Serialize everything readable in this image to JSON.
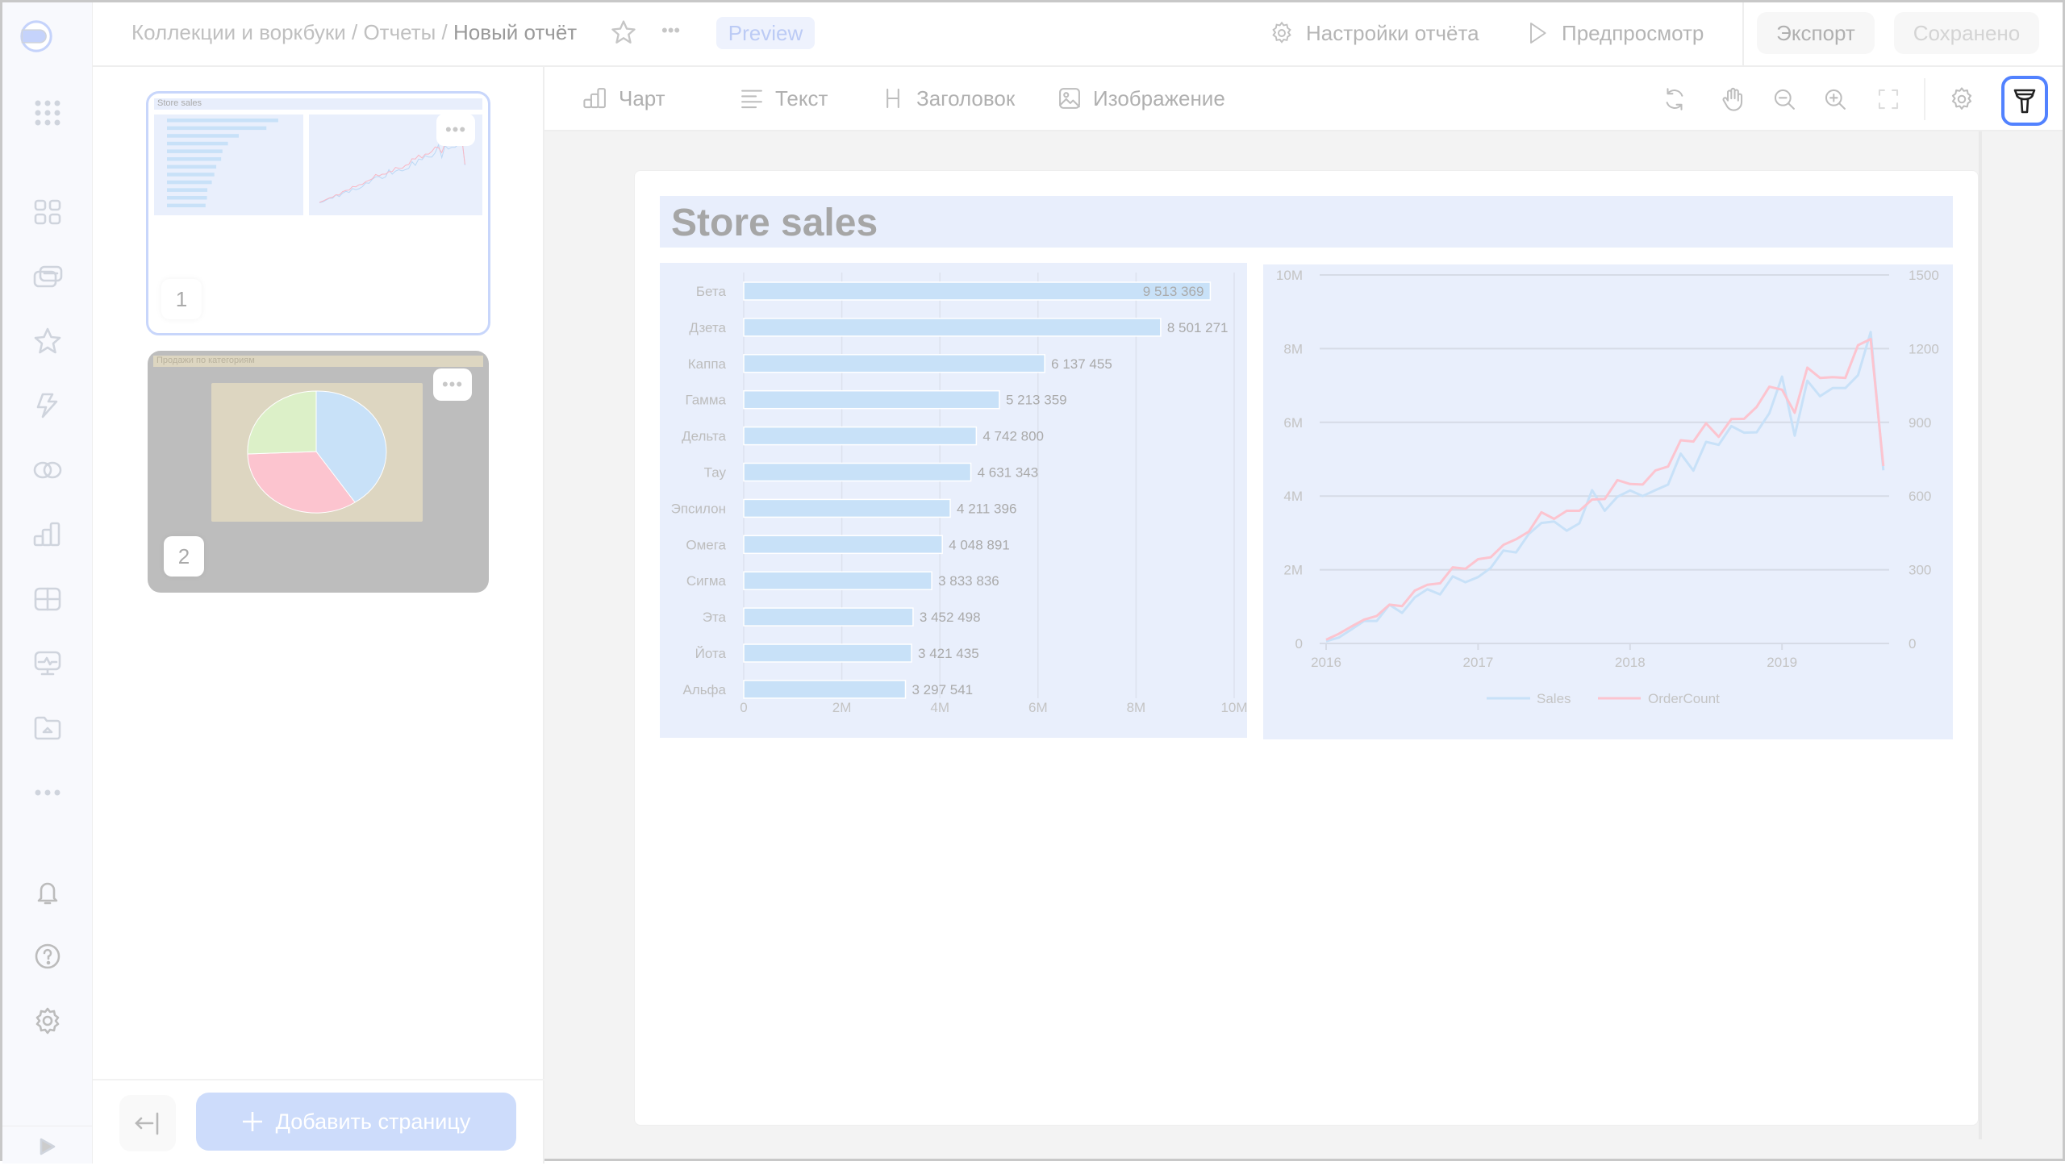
{
  "header": {
    "breadcrumb": [
      "Коллекции и воркбуки",
      "Отчеты",
      "Новый отчёт"
    ],
    "separator": "/",
    "more": "•••",
    "badge": "Preview",
    "report_settings": "Настройки отчёта",
    "preview": "Предпросмотр",
    "export": "Экспорт",
    "saved": "Сохранено"
  },
  "sidebar": {
    "icons": [
      "logo",
      "apps-grid-icon",
      "dashboard-icon",
      "collections-icon",
      "favorites-star-icon",
      "lightning-icon",
      "connections-icon",
      "charts-icon",
      "datasets-icon",
      "monitor-icon",
      "folder-icon",
      "more-icon",
      "bell-icon",
      "help-icon",
      "settings-gear-icon",
      "expand-icon"
    ],
    "more": "•••"
  },
  "pages_panel": {
    "pages": [
      {
        "number": "1",
        "title": "Store sales",
        "selected": true
      },
      {
        "number": "2",
        "title": "Продажи по категориям",
        "selected": false
      }
    ],
    "more": "•••",
    "add_page": "Добавить страницу"
  },
  "toolbar": {
    "items": [
      "Чарт",
      "Текст",
      "Заголовок",
      "Изображение"
    ],
    "tools": [
      "refresh-icon",
      "hand-icon",
      "zoom-out-icon",
      "zoom-in-icon",
      "fullscreen-icon",
      "settings-icon",
      "filter-icon"
    ],
    "active_tool": "filter-icon",
    "accent": "#5282ff"
  },
  "report": {
    "title": "Store sales"
  },
  "chart_data": [
    {
      "type": "bar",
      "orientation": "horizontal",
      "categories": [
        "Бета",
        "Дзета",
        "Каппа",
        "Гамма",
        "Дельта",
        "Тау",
        "Эпсилон",
        "Омега",
        "Сигма",
        "Эта",
        "Йота",
        "Альфа"
      ],
      "values": [
        9513369,
        8501271,
        6137455,
        5213359,
        4742800,
        4631343,
        4211396,
        4048891,
        3833836,
        3452498,
        3421435,
        3297541
      ],
      "data_labels": [
        "9 513 369",
        "8 501 271",
        "6 137 455",
        "5 213 359",
        "4 742 800",
        "4 631 343",
        "4 211 396",
        "4 048 891",
        "3 833 836",
        "3 452 498",
        "3 421 435",
        "3 297 541"
      ],
      "xlim": [
        0,
        10000000
      ],
      "x_ticks": [
        "0",
        "2M",
        "4M",
        "6M",
        "8M",
        "10M"
      ],
      "grid": true,
      "color": "#c8e1f8"
    },
    {
      "type": "line",
      "x_start": "2016-01",
      "x_interval": "month",
      "x_ticks": [
        "2016",
        "2017",
        "2018",
        "2019"
      ],
      "y_left_ticks": [
        "0",
        "2M",
        "4M",
        "6M",
        "8M",
        "10M"
      ],
      "y_left_lim": [
        0,
        10000000
      ],
      "y_right_ticks": [
        "0",
        "300",
        "600",
        "900",
        "1200",
        "1500"
      ],
      "y_right_lim": [
        0,
        1500
      ],
      "legend": "bottom",
      "grid": true,
      "series": [
        {
          "name": "Sales",
          "axis": "left",
          "color": "#c8e1f8",
          "values": [
            0.06,
            0.16,
            0.38,
            0.61,
            0.61,
            1.05,
            0.83,
            1.25,
            1.47,
            1.33,
            1.82,
            1.66,
            1.8,
            2.05,
            2.52,
            2.47,
            2.97,
            3.27,
            3.31,
            3.06,
            3.26,
            4.16,
            3.6,
            3.98,
            4.15,
            4.0,
            4.16,
            4.31,
            5.15,
            4.69,
            5.47,
            5.39,
            5.9,
            5.72,
            5.73,
            6.25,
            7.24,
            5.64,
            7.13,
            6.71,
            6.93,
            6.93,
            7.28,
            8.45,
            4.7
          ],
          "unit": "M"
        },
        {
          "name": "OrderCount",
          "axis": "right",
          "color": "#fcc4cf",
          "values": [
            15,
            39,
            69,
            97,
            112,
            158,
            152,
            215,
            239,
            245,
            310,
            304,
            343,
            351,
            401,
            424,
            455,
            534,
            507,
            540,
            540,
            586,
            588,
            665,
            649,
            647,
            704,
            720,
            827,
            822,
            896,
            841,
            913,
            914,
            963,
            1045,
            1033,
            939,
            1123,
            1081,
            1084,
            1081,
            1214,
            1239,
            722
          ]
        }
      ]
    }
  ]
}
